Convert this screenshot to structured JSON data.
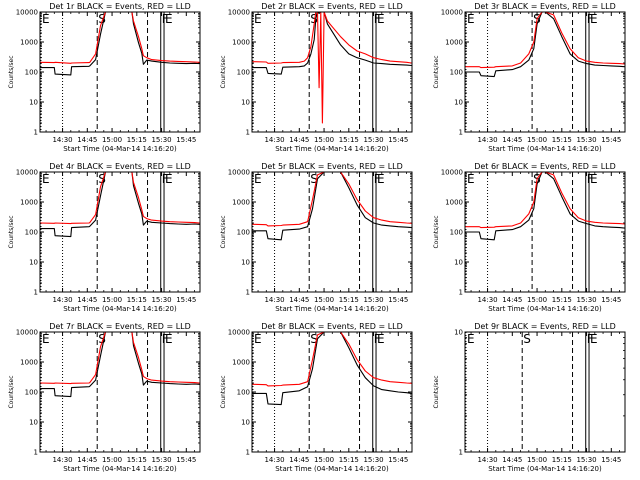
{
  "shared": {
    "xlabel": "Start Time (04-Mar-14 14:16:20)",
    "ylabel": "Counts/sec",
    "xticks": [
      "14:30",
      "14:45",
      "15:00",
      "15:15",
      "15:30",
      "15:45"
    ],
    "xtick_minutes": [
      30,
      45,
      60,
      75,
      90,
      105
    ],
    "xlim_minutes": [
      16.33,
      113.3
    ],
    "yticks": [
      "1",
      "10",
      "100",
      "1000",
      "10000"
    ],
    "ytick_values": [
      1,
      10,
      100,
      1000,
      10000
    ],
    "ylim": [
      1,
      10000
    ],
    "y_scale": "log",
    "colors": {
      "events": "#000000",
      "lld": "#ff0000",
      "axes": "#000000"
    }
  },
  "chart_data": [
    {
      "type": "line",
      "title": "Det 1r BLACK = Events, RED = LLD",
      "x_unit": "minutes after 14:00",
      "x": [
        16.5,
        25,
        25.5,
        35,
        35.5,
        46,
        46.5,
        50,
        53,
        56,
        60,
        65,
        70,
        72,
        73,
        76,
        78,
        79,
        81,
        84,
        90,
        95,
        100,
        105,
        110,
        113
      ],
      "series": [
        {
          "name": "BLACK = Events",
          "color": "#000000",
          "values": [
            140,
            140,
            85,
            80,
            150,
            155,
            160,
            260,
            1800,
            10000,
            10000,
            10000,
            10000,
            10000,
            4000,
            950,
            420,
            180,
            250,
            230,
            210,
            200,
            195,
            190,
            195,
            190
          ]
        },
        {
          "name": "RED = LLD",
          "color": "#ff0000",
          "values": [
            210,
            205,
            210,
            195,
            200,
            205,
            210,
            400,
            3500,
            10000,
            10000,
            10000,
            10000,
            10000,
            5000,
            1500,
            600,
            350,
            300,
            260,
            240,
            230,
            225,
            220,
            215,
            210
          ]
        }
      ],
      "markers": [
        {
          "label": "E",
          "x": 16.9,
          "style": "dotted"
        },
        {
          "label": "",
          "x": 30,
          "style": "dotted"
        },
        {
          "label": "S",
          "x": 51,
          "style": "dashed"
        },
        {
          "label": "",
          "x": 81.5,
          "style": "dashed"
        },
        {
          "label": "F",
          "x": 89.5,
          "style": "solid"
        },
        {
          "label": "E",
          "x": 91.5,
          "style": "solid"
        }
      ]
    },
    {
      "type": "line",
      "title": "Det 2r BLACK = Events, RED = LLD",
      "x_unit": "minutes after 14:00",
      "x": [
        16.5,
        25,
        26,
        34,
        35,
        45,
        48,
        50,
        52,
        54,
        55,
        56,
        57,
        58,
        59,
        60,
        62,
        70,
        75,
        80,
        85,
        90,
        95,
        100,
        105,
        110,
        113
      ],
      "series": [
        {
          "name": "BLACK = Events",
          "color": "#000000",
          "values": [
            140,
            140,
            90,
            85,
            145,
            150,
            160,
            200,
            400,
            1200,
            6000,
            10000,
            9000,
            10000,
            10000,
            10000,
            4000,
            800,
            400,
            300,
            250,
            200,
            190,
            180,
            175,
            170,
            165
          ]
        },
        {
          "name": "RED = LLD",
          "color": "#ff0000",
          "values": [
            220,
            215,
            195,
            200,
            205,
            210,
            230,
            300,
            700,
            4000,
            10000,
            10000,
            30,
            10000,
            2,
            10000,
            5000,
            1500,
            800,
            500,
            400,
            300,
            260,
            230,
            220,
            210,
            200
          ]
        }
      ],
      "markers": [
        {
          "label": "E",
          "x": 16.9,
          "style": "dotted"
        },
        {
          "label": "",
          "x": 30,
          "style": "dotted"
        },
        {
          "label": "S",
          "x": 51,
          "style": "dashed"
        },
        {
          "label": "",
          "x": 81.5,
          "style": "dashed"
        },
        {
          "label": "F",
          "x": 89.5,
          "style": "solid"
        },
        {
          "label": "E",
          "x": 91.5,
          "style": "solid"
        }
      ]
    },
    {
      "type": "line",
      "title": "Det 3r BLACK = Events, RED = LLD",
      "x_unit": "minutes after 14:00",
      "x": [
        16.5,
        25,
        26,
        34,
        35,
        45,
        50,
        55,
        58,
        60,
        63,
        65,
        70,
        75,
        80,
        85,
        90,
        95,
        100,
        105,
        110,
        113
      ],
      "series": [
        {
          "name": "BLACK = Events",
          "color": "#000000",
          "values": [
            100,
            100,
            75,
            70,
            110,
            120,
            150,
            250,
            600,
            4000,
            10000,
            10000,
            6000,
            1500,
            400,
            230,
            190,
            170,
            165,
            160,
            155,
            150
          ]
        },
        {
          "name": "RED = LLD",
          "color": "#ff0000",
          "values": [
            150,
            150,
            140,
            145,
            150,
            160,
            200,
            400,
            1000,
            6000,
            10000,
            10000,
            8000,
            2000,
            600,
            300,
            230,
            210,
            200,
            195,
            190,
            185
          ]
        }
      ],
      "markers": [
        {
          "label": "E",
          "x": 16.9,
          "style": "dotted"
        },
        {
          "label": "",
          "x": 30,
          "style": "dotted"
        },
        {
          "label": "S",
          "x": 57,
          "style": "dashed"
        },
        {
          "label": "",
          "x": 81.5,
          "style": "dashed"
        },
        {
          "label": "F",
          "x": 89.5,
          "style": "solid"
        },
        {
          "label": "E",
          "x": 91.5,
          "style": "solid"
        }
      ]
    },
    {
      "type": "line",
      "title": "Det 4r BLACK = Events, RED = LLD",
      "x_unit": "minutes after 14:00",
      "x": [
        16.5,
        25,
        25.5,
        35,
        35.5,
        46,
        46.5,
        50,
        53,
        56,
        60,
        65,
        70,
        72,
        73,
        76,
        78,
        79,
        81,
        84,
        90,
        95,
        100,
        105,
        110,
        113
      ],
      "series": [
        {
          "name": "BLACK = Events",
          "color": "#000000",
          "values": [
            130,
            130,
            75,
            70,
            140,
            150,
            155,
            250,
            1600,
            10000,
            10000,
            10000,
            10000,
            10000,
            3500,
            900,
            400,
            170,
            230,
            210,
            200,
            190,
            185,
            180,
            185,
            180
          ]
        },
        {
          "name": "RED = LLD",
          "color": "#ff0000",
          "values": [
            200,
            195,
            200,
            190,
            195,
            200,
            205,
            380,
            3200,
            10000,
            10000,
            10000,
            10000,
            10000,
            4500,
            1400,
            550,
            330,
            280,
            250,
            230,
            220,
            215,
            210,
            205,
            200
          ]
        }
      ],
      "markers": [
        {
          "label": "E",
          "x": 16.9,
          "style": "dotted"
        },
        {
          "label": "",
          "x": 30,
          "style": "dotted"
        },
        {
          "label": "S",
          "x": 51,
          "style": "dashed"
        },
        {
          "label": "",
          "x": 81.5,
          "style": "dashed"
        },
        {
          "label": "F",
          "x": 89.5,
          "style": "solid"
        },
        {
          "label": "E",
          "x": 91.5,
          "style": "solid"
        }
      ]
    },
    {
      "type": "line",
      "title": "Det 5r BLACK = Events, RED = LLD",
      "x_unit": "minutes after 14:00",
      "x": [
        16.5,
        25,
        26,
        34,
        35,
        45,
        50,
        53,
        56,
        60,
        65,
        70,
        75,
        80,
        85,
        90,
        95,
        100,
        105,
        110,
        113
      ],
      "series": [
        {
          "name": "BLACK = Events",
          "color": "#000000",
          "values": [
            110,
            110,
            60,
            55,
            115,
            125,
            150,
            600,
            6000,
            10000,
            10000,
            10000,
            3000,
            800,
            300,
            200,
            170,
            160,
            150,
            145,
            140
          ]
        },
        {
          "name": "RED = LLD",
          "color": "#ff0000",
          "values": [
            180,
            175,
            160,
            165,
            170,
            180,
            220,
            1200,
            8000,
            10000,
            10000,
            10000,
            4000,
            1200,
            500,
            300,
            250,
            220,
            210,
            200,
            195
          ]
        }
      ],
      "markers": [
        {
          "label": "E",
          "x": 16.9,
          "style": "dotted"
        },
        {
          "label": "",
          "x": 30,
          "style": "dotted"
        },
        {
          "label": "S",
          "x": 51,
          "style": "dashed"
        },
        {
          "label": "",
          "x": 81.5,
          "style": "dashed"
        },
        {
          "label": "F",
          "x": 89.5,
          "style": "solid"
        },
        {
          "label": "E",
          "x": 91.5,
          "style": "solid"
        }
      ]
    },
    {
      "type": "line",
      "title": "Det 6r BLACK = Events, RED = LLD",
      "x_unit": "minutes after 14:00",
      "x": [
        16.5,
        25,
        26,
        34,
        35,
        45,
        50,
        55,
        58,
        60,
        63,
        65,
        70,
        75,
        80,
        85,
        90,
        95,
        100,
        105,
        110,
        113
      ],
      "series": [
        {
          "name": "BLACK = Events",
          "color": "#000000",
          "values": [
            100,
            100,
            60,
            55,
            110,
            120,
            150,
            250,
            600,
            4000,
            10000,
            10000,
            6000,
            1500,
            400,
            230,
            190,
            160,
            150,
            145,
            140,
            135
          ]
        },
        {
          "name": "RED = LLD",
          "color": "#ff0000",
          "values": [
            150,
            150,
            140,
            145,
            150,
            160,
            200,
            400,
            1000,
            6000,
            10000,
            10000,
            8000,
            2000,
            600,
            300,
            230,
            210,
            200,
            195,
            190,
            185
          ]
        }
      ],
      "markers": [
        {
          "label": "E",
          "x": 16.9,
          "style": "dotted"
        },
        {
          "label": "",
          "x": 30,
          "style": "dotted"
        },
        {
          "label": "S",
          "x": 57,
          "style": "dashed"
        },
        {
          "label": "",
          "x": 81.5,
          "style": "dashed"
        },
        {
          "label": "F",
          "x": 89.5,
          "style": "solid"
        },
        {
          "label": "E",
          "x": 91.5,
          "style": "solid"
        }
      ]
    },
    {
      "type": "line",
      "title": "Det 7r BLACK = Events, RED = LLD",
      "x_unit": "minutes after 14:00",
      "x": [
        16.5,
        25,
        25.5,
        35,
        35.5,
        46,
        46.5,
        50,
        53,
        56,
        60,
        65,
        70,
        72,
        73,
        76,
        78,
        79,
        81,
        84,
        90,
        95,
        100,
        105,
        110,
        113
      ],
      "series": [
        {
          "name": "BLACK = Events",
          "color": "#000000",
          "values": [
            130,
            130,
            75,
            70,
            140,
            150,
            155,
            250,
            1600,
            10000,
            10000,
            10000,
            10000,
            10000,
            3500,
            900,
            400,
            170,
            230,
            210,
            200,
            190,
            185,
            180,
            185,
            180
          ]
        },
        {
          "name": "RED = LLD",
          "color": "#ff0000",
          "values": [
            200,
            195,
            200,
            190,
            195,
            200,
            205,
            380,
            3200,
            10000,
            10000,
            10000,
            10000,
            10000,
            4500,
            1400,
            550,
            330,
            280,
            250,
            230,
            220,
            215,
            210,
            205,
            200
          ]
        }
      ],
      "markers": [
        {
          "label": "E",
          "x": 16.9,
          "style": "dotted"
        },
        {
          "label": "",
          "x": 30,
          "style": "dotted"
        },
        {
          "label": "S",
          "x": 51,
          "style": "dashed"
        },
        {
          "label": "",
          "x": 81.5,
          "style": "dashed"
        },
        {
          "label": "F",
          "x": 89.5,
          "style": "solid"
        },
        {
          "label": "E",
          "x": 91.5,
          "style": "solid"
        }
      ]
    },
    {
      "type": "line",
      "title": "Det 8r BLACK = Events, RED = LLD",
      "x_unit": "minutes after 14:00",
      "x": [
        16.5,
        25,
        26,
        34,
        35,
        45,
        50,
        53,
        56,
        60,
        65,
        70,
        75,
        80,
        85,
        90,
        95,
        100,
        105,
        110,
        113
      ],
      "series": [
        {
          "name": "BLACK = Events",
          "color": "#000000",
          "values": [
            90,
            90,
            40,
            38,
            95,
            110,
            150,
            600,
            6000,
            10000,
            10000,
            10000,
            3000,
            800,
            300,
            160,
            120,
            110,
            100,
            95,
            90
          ]
        },
        {
          "name": "RED = LLD",
          "color": "#ff0000",
          "values": [
            180,
            175,
            160,
            165,
            170,
            180,
            220,
            1200,
            8000,
            10000,
            10000,
            10000,
            4000,
            1200,
            500,
            300,
            250,
            220,
            210,
            200,
            195
          ]
        }
      ],
      "markers": [
        {
          "label": "E",
          "x": 16.9,
          "style": "dotted"
        },
        {
          "label": "",
          "x": 30,
          "style": "dotted"
        },
        {
          "label": "S",
          "x": 51,
          "style": "dashed"
        },
        {
          "label": "",
          "x": 81.5,
          "style": "dashed"
        },
        {
          "label": "F",
          "x": 89.5,
          "style": "solid"
        },
        {
          "label": "E",
          "x": 91.5,
          "style": "solid"
        }
      ]
    },
    {
      "type": "line",
      "title": "Det 9r BLACK = Events, RED = LLD",
      "x_unit": "minutes after 14:00",
      "ylim": [
        1,
        10
      ],
      "yticks": [
        "1",
        "10"
      ],
      "ytick_values": [
        1,
        10
      ],
      "x": [],
      "series": [],
      "markers": [
        {
          "label": "E",
          "x": 16.9,
          "style": "dotted"
        },
        {
          "label": "",
          "x": 30,
          "style": "dotted"
        },
        {
          "label": "S",
          "x": 51,
          "style": "dashed"
        },
        {
          "label": "",
          "x": 81.5,
          "style": "dashed"
        },
        {
          "label": "F",
          "x": 89.5,
          "style": "solid"
        },
        {
          "label": "E",
          "x": 91.5,
          "style": "solid"
        }
      ]
    }
  ]
}
